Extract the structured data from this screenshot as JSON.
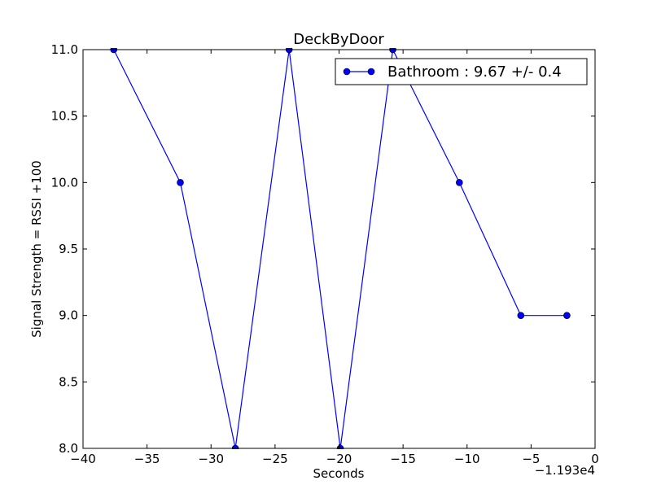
{
  "chart_data": {
    "type": "line",
    "title": "DeckByDoor",
    "xlabel": "Seconds",
    "ylabel": "Signal Strength  = RSSI +100",
    "x_offset_label": "−1.193e4",
    "xlim": [
      -40,
      0
    ],
    "ylim": [
      8.0,
      11.0
    ],
    "x_ticks": [
      -40,
      -35,
      -30,
      -25,
      -20,
      -15,
      -10,
      -5,
      0
    ],
    "x_tick_labels": [
      "−40",
      "−35",
      "−30",
      "−25",
      "−20",
      "−15",
      "−10",
      "−5",
      "0"
    ],
    "y_ticks": [
      8.0,
      8.5,
      9.0,
      9.5,
      10.0,
      10.5,
      11.0
    ],
    "y_tick_labels": [
      "8.0",
      "8.5",
      "9.0",
      "9.5",
      "10.0",
      "10.5",
      "11.0"
    ],
    "grid": false,
    "legend_position": "top-right",
    "series": [
      {
        "name": "Bathroom : 9.67 +/- 0.4",
        "color": "#0000ff",
        "marker": "circle",
        "x": [
          -37.6,
          -32.4,
          -28.1,
          -23.9,
          -19.9,
          -15.8,
          -10.6,
          -5.8,
          -2.2
        ],
        "y": [
          11,
          10,
          8,
          11,
          8,
          11,
          10,
          9,
          9
        ]
      }
    ]
  }
}
